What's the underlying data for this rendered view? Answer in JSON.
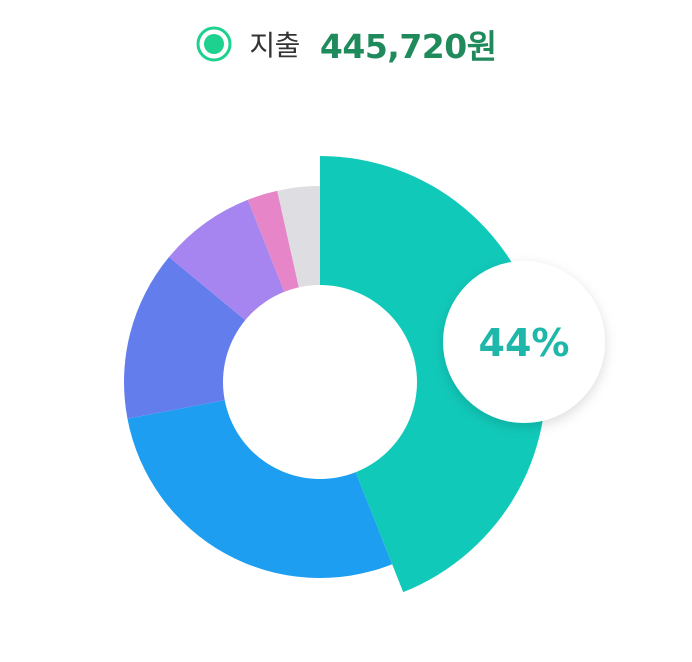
{
  "header": {
    "label": "지출",
    "amount": "445,720원",
    "radio_color": "#1ed18f"
  },
  "chart_data": {
    "type": "pie",
    "style": "donut",
    "values": [
      44,
      28,
      14,
      8,
      2.5,
      3.5
    ],
    "colors": [
      "#11c9b9",
      "#1d9ef0",
      "#647ded",
      "#a685f0",
      "#e686c8",
      "#dddde2"
    ],
    "highlight_index": 0,
    "highlight_label": "44%",
    "highlight_label_color": "#1fb7a9"
  }
}
